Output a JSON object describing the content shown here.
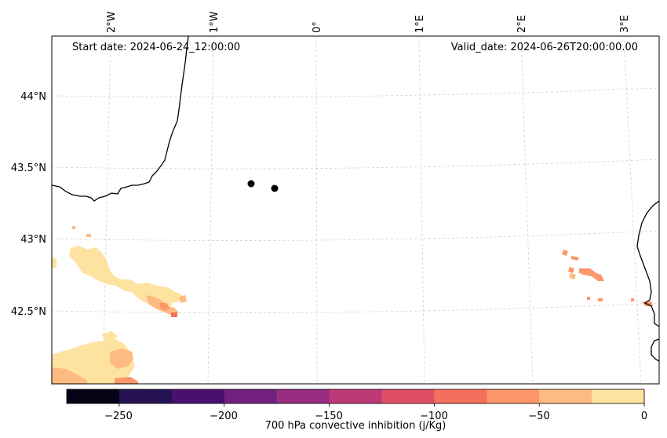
{
  "map": {
    "start_date": "Start date: 2024-06-24_12:00:00",
    "valid_date": "Valid_date: 2024-06-26T20:00:00.00",
    "lon_labels": [
      "2°W",
      "1°W",
      "0°",
      "1°E",
      "2°E",
      "3°E"
    ],
    "lat_labels": [
      "44°N",
      "43.5°N",
      "43°N",
      "42.5°N"
    ],
    "grid": true,
    "coastline": "present",
    "station_markers": 2,
    "colorbar": {
      "label": "700 hPa convective inhibition (j/Kg)",
      "tick_labels": [
        "−250",
        "−200",
        "−150",
        "−100",
        "−50",
        "0"
      ],
      "range": [
        -275,
        0
      ],
      "levels": [
        -275,
        -250,
        -225,
        -200,
        -175,
        -150,
        -125,
        -100,
        -75,
        -50,
        -25,
        0
      ],
      "colors": [
        "#050416",
        "#231151",
        "#4b0f6f",
        "#711f81",
        "#982d80",
        "#be3977",
        "#e04d67",
        "#f5705c",
        "#fd9669",
        "#febb81",
        "#fde2a0"
      ]
    }
  }
}
